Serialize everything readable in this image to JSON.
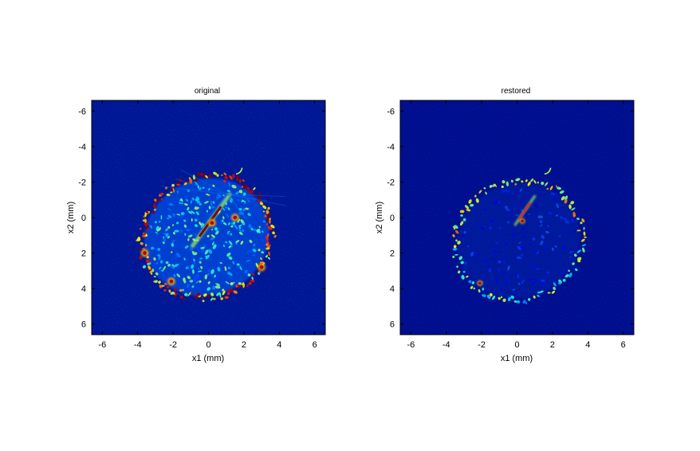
{
  "chart_data": [
    {
      "type": "heatmap",
      "title": "original",
      "xlabel": "x1 (mm)",
      "ylabel": "x2 (mm)",
      "xlim": [
        -6.6,
        6.6
      ],
      "ylim": [
        6.6,
        -6.6
      ],
      "xticks": [
        -6,
        -4,
        -2,
        0,
        2,
        4,
        6
      ],
      "yticks": [
        -6,
        -4,
        -2,
        0,
        2,
        4,
        6
      ],
      "grid": false,
      "colormap": "jet",
      "background_color": "#00007f",
      "features": {
        "ellipse_center": [
          -0.1,
          1.1
        ],
        "ellipse_radii": [
          3.9,
          3.55
        ],
        "ellipse_tilt_deg": -25,
        "rim_intensity": 0.9,
        "interior_intensity": 0.45,
        "streak": [
          [
            -0.9,
            1.6
          ],
          [
            1.2,
            -1.3
          ]
        ],
        "streak_intensity": 1.0,
        "hotspots": [
          [
            -2.1,
            3.6
          ],
          [
            0.2,
            0.3
          ],
          [
            1.5,
            0.0
          ],
          [
            3.0,
            2.8
          ],
          [
            -3.6,
            2.0
          ]
        ]
      }
    },
    {
      "type": "heatmap",
      "title": "restored",
      "xlabel": "x1 (mm)",
      "ylabel": "x2 (mm)",
      "xlim": [
        -6.6,
        6.6
      ],
      "ylim": [
        6.6,
        -6.6
      ],
      "xticks": [
        -6,
        -4,
        -2,
        0,
        2,
        4,
        6
      ],
      "yticks": [
        -6,
        -4,
        -2,
        0,
        2,
        4,
        6
      ],
      "grid": false,
      "colormap": "jet",
      "background_color": "#00007f",
      "features": {
        "ellipse_center": [
          0.1,
          1.3
        ],
        "ellipse_radii": [
          3.8,
          3.5
        ],
        "ellipse_tilt_deg": -25,
        "rim_intensity": 0.55,
        "interior_intensity": 0.18,
        "streak": [
          [
            -0.1,
            0.4
          ],
          [
            1.0,
            -1.2
          ]
        ],
        "streak_intensity": 0.85,
        "hotspots": [
          [
            -2.1,
            3.7
          ],
          [
            0.3,
            0.2
          ]
        ]
      }
    }
  ]
}
